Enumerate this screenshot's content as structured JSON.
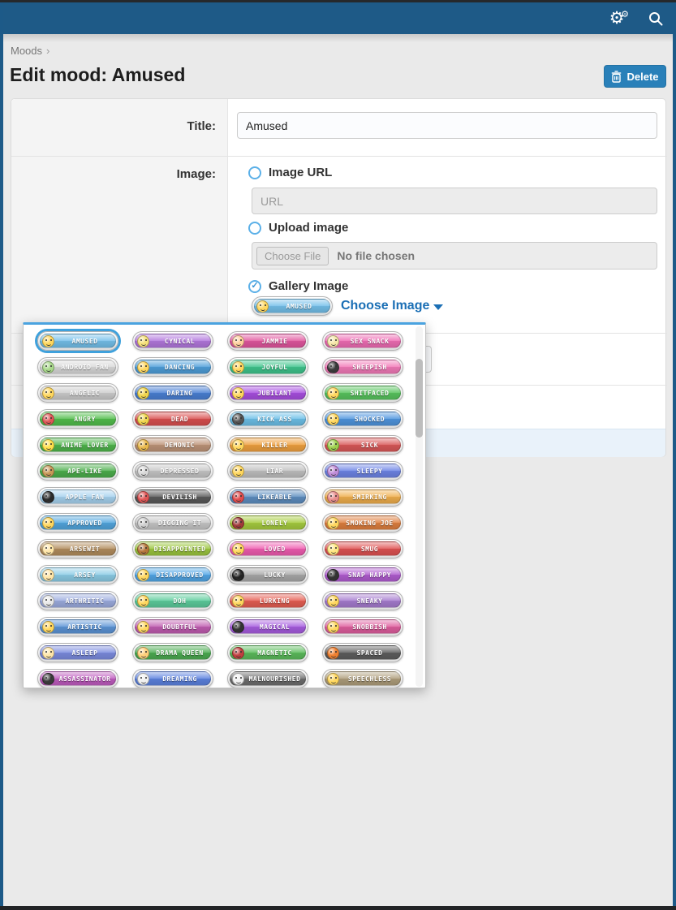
{
  "topbar": {
    "settings_icon": "gears-icon",
    "search_icon": "search-icon"
  },
  "breadcrumb": {
    "path": "Moods",
    "separator": "›"
  },
  "page": {
    "title": "Edit mood: Amused"
  },
  "toolbar": {
    "delete_label": "Delete"
  },
  "form": {
    "title_label": "Title:",
    "title_value": "Amused",
    "image_label": "Image:",
    "options": {
      "image_url": {
        "label": "Image URL",
        "selected": false,
        "url_placeholder": "URL"
      },
      "upload": {
        "label": "Upload image",
        "selected": false,
        "choose_file_label": "Choose File",
        "no_file_text": "No file chosen"
      },
      "gallery": {
        "label": "Gallery Image",
        "selected": true,
        "selected_image": "AMUSED",
        "choose_image_label": "Choose Image"
      }
    }
  },
  "colors": {
    "topbar": "#1e5a87",
    "accent_button": "#2980b9",
    "link": "#1b6fb5",
    "dropdown_border": "#4aa3e0",
    "selected_outline": "#3fa1dc"
  },
  "gallery": {
    "selected_index": 0,
    "items": [
      {
        "label": "AMUSED",
        "color": "#74bfea",
        "face": "#ffd75e"
      },
      {
        "label": "CYNICAL",
        "color": "#b277dd",
        "face": "#f5e07a"
      },
      {
        "label": "JAMMIE",
        "color": "#e1569e",
        "face": "#ffcf9e"
      },
      {
        "label": "SEX SNACK",
        "color": "#ef6cb4",
        "face": "#f5e6a8"
      },
      {
        "label": "ANDROID FAN",
        "color": "#d9d9d9",
        "face": "#a8d88a"
      },
      {
        "label": "DANCING",
        "color": "#4e9ed9",
        "face": "#ffd75e"
      },
      {
        "label": "JOYFUL",
        "color": "#3fc48c",
        "face": "#ffd75e"
      },
      {
        "label": "SHEEPISH",
        "color": "#f27ab8",
        "face": "#3a3a3a"
      },
      {
        "label": "ANGELIC",
        "color": "#cccccc",
        "face": "#ffd75e"
      },
      {
        "label": "DARING",
        "color": "#4a80d4",
        "face": "#f0d54c"
      },
      {
        "label": "JUBILANT",
        "color": "#a84fe0",
        "face": "#ffd75e"
      },
      {
        "label": "SHITFACED",
        "color": "#58c45e",
        "face": "#ffd75e"
      },
      {
        "label": "ANGRY",
        "color": "#52bd4c",
        "face": "#e05858"
      },
      {
        "label": "DEAD",
        "color": "#d94f4f",
        "face": "#f0d54c"
      },
      {
        "label": "KICK ASS",
        "color": "#6cbfe8",
        "face": "#555555"
      },
      {
        "label": "SHOCKED",
        "color": "#4f95de",
        "face": "#ffd75e"
      },
      {
        "label": "ANIME LOVER",
        "color": "#4fb54c",
        "face": "#ffe04c"
      },
      {
        "label": "DEMONIC",
        "color": "#bd9478",
        "face": "#e8b84c"
      },
      {
        "label": "KILLER",
        "color": "#efa03f",
        "face": "#ffd75e"
      },
      {
        "label": "SICK",
        "color": "#d95858",
        "face": "#9ccf4c"
      },
      {
        "label": "APE-LIKE",
        "color": "#4caf4c",
        "face": "#c89858"
      },
      {
        "label": "DEPRESSED",
        "color": "#c6c6c6",
        "face": "#d8d8d8"
      },
      {
        "label": "LIAR",
        "color": "#bfbfbf",
        "face": "#ffd75e"
      },
      {
        "label": "SLEEPY",
        "color": "#6e84e6",
        "face": "#bf8cd8"
      },
      {
        "label": "APPLE FAN",
        "color": "#a6d2ef",
        "face": "#2a2a2a"
      },
      {
        "label": "DEVILISH",
        "color": "#5a5a5a",
        "face": "#e05555"
      },
      {
        "label": "LIKEABLE",
        "color": "#5d8dbf",
        "face": "#e04c4c"
      },
      {
        "label": "SMIRKING",
        "color": "#efae4c",
        "face": "#e88c8c"
      },
      {
        "label": "APPROVED",
        "color": "#52a6de",
        "face": "#ffd75e"
      },
      {
        "label": "DIGGING IT",
        "color": "#c6c6c6",
        "face": "#cfcfcf"
      },
      {
        "label": "LONELY",
        "color": "#a6cc3f",
        "face": "#a03a3a"
      },
      {
        "label": "SMOKING JOE",
        "color": "#df7f3f",
        "face": "#ffd75e"
      },
      {
        "label": "ARSEWIT",
        "color": "#b28d5e",
        "face": "#ffe6a8"
      },
      {
        "label": "DISAPPOINTED",
        "color": "#9cc63f",
        "face": "#b5763a"
      },
      {
        "label": "LOVED",
        "color": "#ef5cb0",
        "face": "#ffd75e"
      },
      {
        "label": "SMUG",
        "color": "#df5252",
        "face": "#ffe680"
      },
      {
        "label": "ARSEY",
        "color": "#8ccce6",
        "face": "#ffe6a8"
      },
      {
        "label": "DISAPPROVED",
        "color": "#52a6e6",
        "face": "#ffd75e"
      },
      {
        "label": "LUCKY",
        "color": "#a8a8a8",
        "face": "#222222"
      },
      {
        "label": "SNAP HAPPY",
        "color": "#b05cd0",
        "face": "#333333"
      },
      {
        "label": "ARTHRITIC",
        "color": "#9cacdf",
        "face": "#e8e8e8"
      },
      {
        "label": "DOH",
        "color": "#5ccc9c",
        "face": "#ffd75e"
      },
      {
        "label": "LURKING",
        "color": "#e65e52",
        "face": "#ffd75e"
      },
      {
        "label": "SNEAKY",
        "color": "#a67ccf",
        "face": "#ffd75e"
      },
      {
        "label": "ARTISTIC",
        "color": "#5c94d6",
        "face": "#ffd75e"
      },
      {
        "label": "DOUBTFUL",
        "color": "#bf5cb0",
        "face": "#ffd75e"
      },
      {
        "label": "MAGICAL",
        "color": "#a65cdf",
        "face": "#333333"
      },
      {
        "label": "SNOBBISH",
        "color": "#df5e9e",
        "face": "#ffd75e"
      },
      {
        "label": "ASLEEP",
        "color": "#7c8cdf",
        "face": "#ffe6a8"
      },
      {
        "label": "DRAMA QUEEN",
        "color": "#4cac52",
        "face": "#ffcf7a"
      },
      {
        "label": "MAGNETIC",
        "color": "#5cbc5c",
        "face": "#c04040"
      },
      {
        "label": "SPACED",
        "color": "#5e5e5e",
        "face": "#f08030"
      },
      {
        "label": "ASSASSINATOR",
        "color": "#bf5cbf",
        "face": "#3a3a3a"
      },
      {
        "label": "DREAMING",
        "color": "#5c82df",
        "face": "#f0f0f0"
      },
      {
        "label": "MALNOURISHED",
        "color": "#6e6e6e",
        "face": "#f0f0f0"
      },
      {
        "label": "SPEECHLESS",
        "color": "#af9e7c",
        "face": "#ffd75e"
      }
    ]
  }
}
